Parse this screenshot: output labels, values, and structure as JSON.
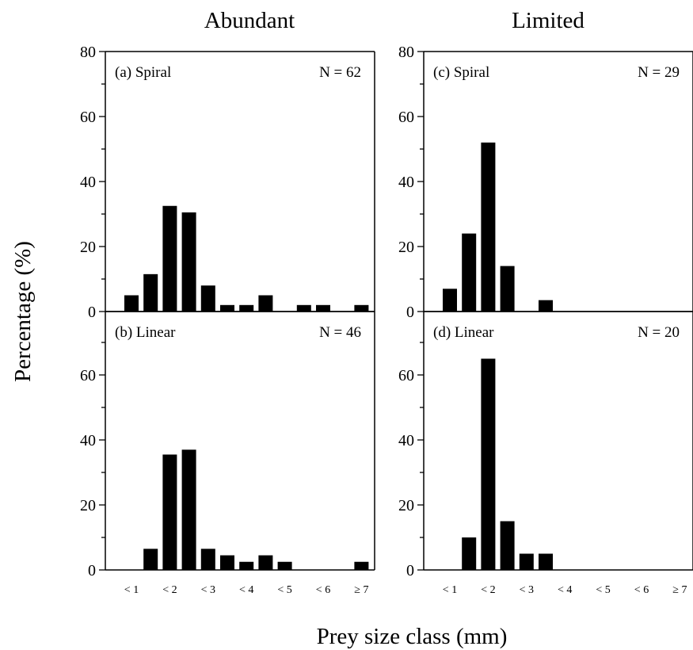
{
  "figure": {
    "column_titles": [
      "Abundant",
      "Limited"
    ],
    "ylabel": "Percentage (%)",
    "xlabel": "Prey size class (mm)"
  },
  "chart_data": [
    {
      "type": "bar",
      "panel": "(a) Spiral",
      "n_label": "N = 62",
      "categories": [
        "< 1",
        "",
        "< 2",
        "",
        "< 3",
        "",
        "< 4",
        "",
        "< 5",
        "",
        "< 6",
        "",
        "≥ 7"
      ],
      "values": [
        5,
        11.5,
        32.5,
        30.5,
        8,
        2,
        2,
        5,
        0,
        2,
        2,
        0,
        2
      ],
      "ylim": [
        0,
        80
      ],
      "yticks": [
        0,
        20,
        40,
        60,
        80
      ]
    },
    {
      "type": "bar",
      "panel": "(b) Linear",
      "n_label": "N = 46",
      "categories": [
        "< 1",
        "",
        "< 2",
        "",
        "< 3",
        "",
        "< 4",
        "",
        "< 5",
        "",
        "< 6",
        "",
        "≥ 7"
      ],
      "values": [
        0,
        6.5,
        35.5,
        37,
        6.5,
        4.5,
        2.5,
        4.5,
        2.5,
        0,
        0,
        0,
        2.5
      ],
      "ylim": [
        0,
        80
      ],
      "yticks": [
        0,
        20,
        40,
        60
      ]
    },
    {
      "type": "bar",
      "panel": "(c) Spiral",
      "n_label": "N = 29",
      "categories": [
        "< 1",
        "",
        "< 2",
        "",
        "< 3",
        "",
        "< 4",
        "",
        "< 5",
        "",
        "< 6",
        "",
        "≥ 7"
      ],
      "values": [
        7,
        24,
        52,
        14,
        0,
        3.5,
        0,
        0,
        0,
        0,
        0,
        0,
        0
      ],
      "ylim": [
        0,
        80
      ],
      "yticks": [
        0,
        20,
        40,
        60,
        80
      ]
    },
    {
      "type": "bar",
      "panel": "(d) Linear",
      "n_label": "N = 20",
      "categories": [
        "< 1",
        "",
        "< 2",
        "",
        "< 3",
        "",
        "< 4",
        "",
        "< 5",
        "",
        "< 6",
        "",
        "≥ 7"
      ],
      "values": [
        0,
        10,
        65,
        15,
        5,
        5,
        0,
        0,
        0,
        0,
        0,
        0,
        0
      ],
      "ylim": [
        0,
        80
      ],
      "yticks": [
        0,
        20,
        40,
        60
      ]
    }
  ]
}
